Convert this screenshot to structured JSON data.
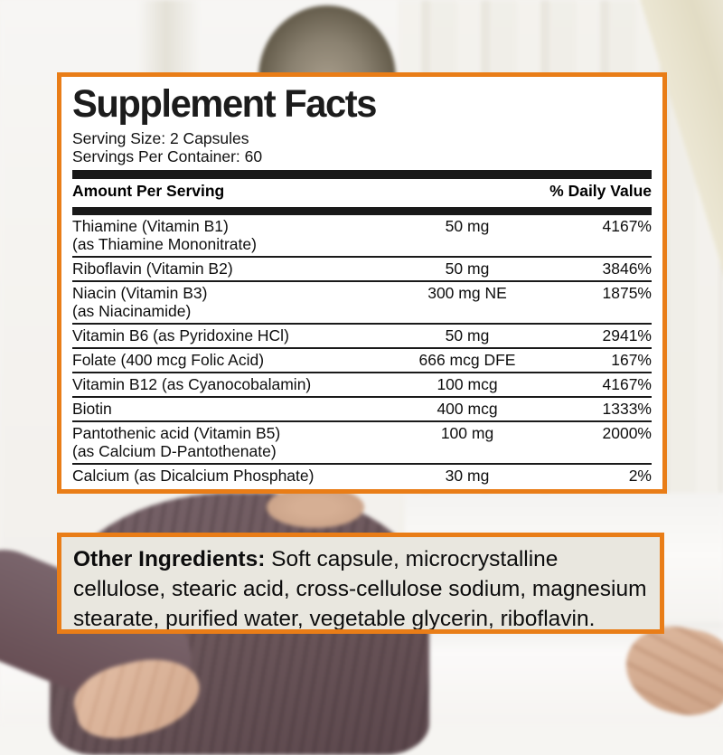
{
  "supplement_facts": {
    "title": "Supplement Facts",
    "serving_size": "Serving Size: 2 Capsules",
    "servings_per_container": "Servings Per Container: 60",
    "header": {
      "amount_col": "Amount Per Serving",
      "dv_col": "% Daily Value"
    },
    "rows": [
      {
        "name": "Thiamine (Vitamin B1)",
        "sub": "(as Thiamine Mononitrate)",
        "amount": "50 mg",
        "dv": "4167%"
      },
      {
        "name": "Riboflavin (Vitamin B2)",
        "sub": "",
        "amount": "50 mg",
        "dv": "3846%"
      },
      {
        "name": "Niacin (Vitamin B3)",
        "sub": "(as Niacinamide)",
        "amount": "300 mg NE",
        "dv": "1875%"
      },
      {
        "name": "Vitamin B6 (as Pyridoxine HCl)",
        "sub": "",
        "amount": "50 mg",
        "dv": "2941%"
      },
      {
        "name": "Folate (400 mcg Folic Acid)",
        "sub": "",
        "amount": "666 mcg DFE",
        "dv": "167%"
      },
      {
        "name": "Vitamin B12 (as Cyanocobalamin)",
        "sub": "",
        "amount": "100 mcg",
        "dv": "4167%"
      },
      {
        "name": "Biotin",
        "sub": "",
        "amount": "400 mcg",
        "dv": "1333%"
      },
      {
        "name": "Pantothenic acid (Vitamin B5)",
        "sub": "(as Calcium D-Pantothenate)",
        "amount": "100 mg",
        "dv": "2000%"
      },
      {
        "name": "Calcium (as Dicalcium Phosphate)",
        "sub": "",
        "amount": "30 mg",
        "dv": "2%"
      }
    ]
  },
  "other_ingredients": {
    "label": "Other Ingredients:",
    "text": " Soft capsule, microcrystalline cellulose, stearic acid, cross-cellulose sodium, magnesium stearate, purified water, vegetable glycerin, riboflavin."
  },
  "colors": {
    "accent_orange": "#e97d17",
    "bar_black": "#191919",
    "ingredients_bg": "#e9e7df"
  }
}
